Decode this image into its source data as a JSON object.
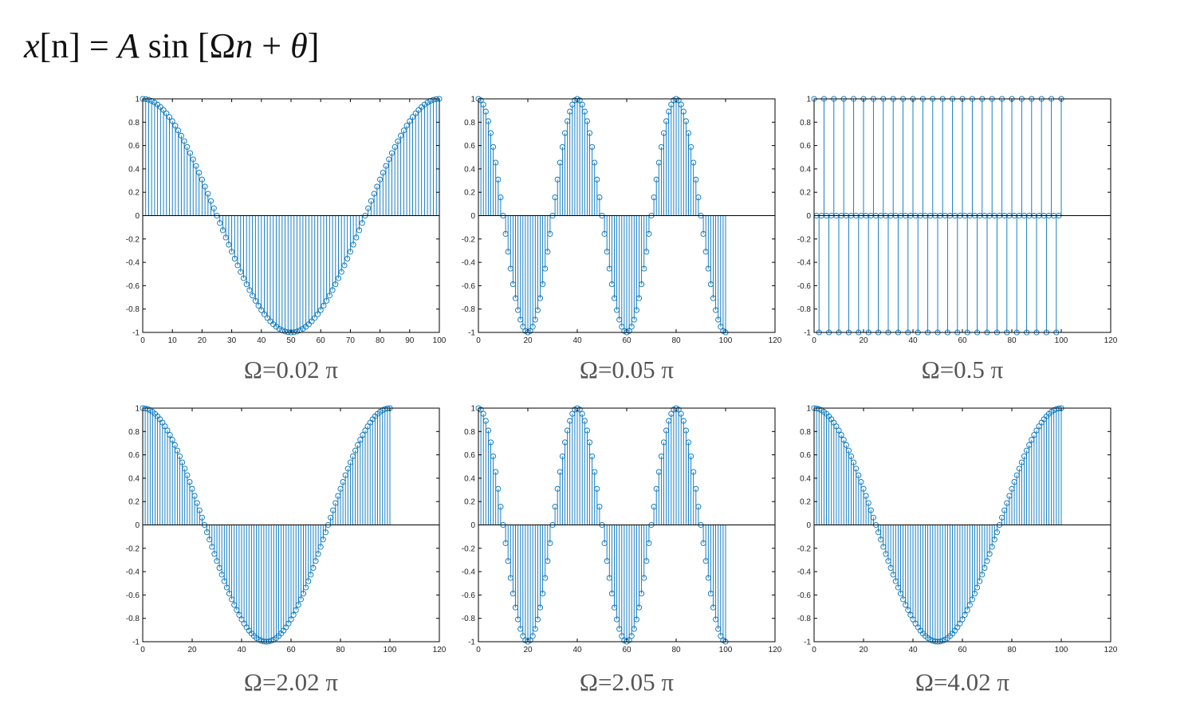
{
  "equation": {
    "lhs_var": "x",
    "lhs_index": "[n]",
    "equals": " = ",
    "amp": "A",
    "fn": " sin [Ω",
    "n": "n",
    "plus": " + ",
    "theta": "θ",
    "close": "]"
  },
  "colors": {
    "stem": "#0072BD",
    "axis": "#000000",
    "zero_line": "#000000"
  },
  "chart_data": [
    {
      "type": "stem",
      "caption": "Ω=0.02 π",
      "omega_pi": 0.02,
      "n": [
        0,
        100
      ],
      "amplitude": 1,
      "phase": "π/2",
      "xlim": [
        0,
        100
      ],
      "xticks": [
        0,
        10,
        20,
        30,
        40,
        50,
        60,
        70,
        80,
        90,
        100
      ],
      "ylim": [
        -1,
        1
      ],
      "yticks": [
        -1,
        -0.8,
        -0.6,
        -0.4,
        -0.2,
        0,
        0.2,
        0.4,
        0.6,
        0.8,
        1
      ]
    },
    {
      "type": "stem",
      "caption": "Ω=0.05 π",
      "omega_pi": 0.05,
      "n": [
        0,
        100
      ],
      "amplitude": 1,
      "phase": "π/2",
      "xlim": [
        0,
        120
      ],
      "xticks": [
        0,
        20,
        40,
        60,
        80,
        100,
        120
      ],
      "ylim": [
        -1,
        1
      ],
      "yticks": [
        -1,
        -0.8,
        -0.6,
        -0.4,
        -0.2,
        0,
        0.2,
        0.4,
        0.6,
        0.8,
        1
      ]
    },
    {
      "type": "stem",
      "caption": "Ω=0.5 π",
      "omega_pi": 0.5,
      "n": [
        0,
        100
      ],
      "amplitude": 1,
      "phase": "π/2",
      "xlim": [
        0,
        120
      ],
      "xticks": [
        0,
        20,
        40,
        60,
        80,
        100,
        120
      ],
      "ylim": [
        -1,
        1
      ],
      "yticks": [
        -1,
        -0.8,
        -0.6,
        -0.4,
        -0.2,
        0,
        0.2,
        0.4,
        0.6,
        0.8,
        1
      ]
    },
    {
      "type": "stem",
      "caption": "Ω=2.02 π",
      "omega_pi": 2.02,
      "n": [
        0,
        100
      ],
      "amplitude": 1,
      "phase": "π/2",
      "xlim": [
        0,
        120
      ],
      "xticks": [
        0,
        20,
        40,
        60,
        80,
        100,
        120
      ],
      "ylim": [
        -1,
        1
      ],
      "yticks": [
        -1,
        -0.8,
        -0.6,
        -0.4,
        -0.2,
        0,
        0.2,
        0.4,
        0.6,
        0.8,
        1
      ]
    },
    {
      "type": "stem",
      "caption": "Ω=2.05 π",
      "omega_pi": 2.05,
      "n": [
        0,
        100
      ],
      "amplitude": 1,
      "phase": "π/2",
      "xlim": [
        0,
        120
      ],
      "xticks": [
        0,
        20,
        40,
        60,
        80,
        100,
        120
      ],
      "ylim": [
        -1,
        1
      ],
      "yticks": [
        -1,
        -0.8,
        -0.6,
        -0.4,
        -0.2,
        0,
        0.2,
        0.4,
        0.6,
        0.8,
        1
      ]
    },
    {
      "type": "stem",
      "caption": "Ω=4.02 π",
      "omega_pi": 4.02,
      "n": [
        0,
        100
      ],
      "amplitude": 1,
      "phase": "π/2",
      "xlim": [
        0,
        120
      ],
      "xticks": [
        0,
        20,
        40,
        60,
        80,
        100,
        120
      ],
      "ylim": [
        -1,
        1
      ],
      "yticks": [
        -1,
        -0.8,
        -0.6,
        -0.4,
        -0.2,
        0,
        0.2,
        0.4,
        0.6,
        0.8,
        1
      ]
    }
  ]
}
